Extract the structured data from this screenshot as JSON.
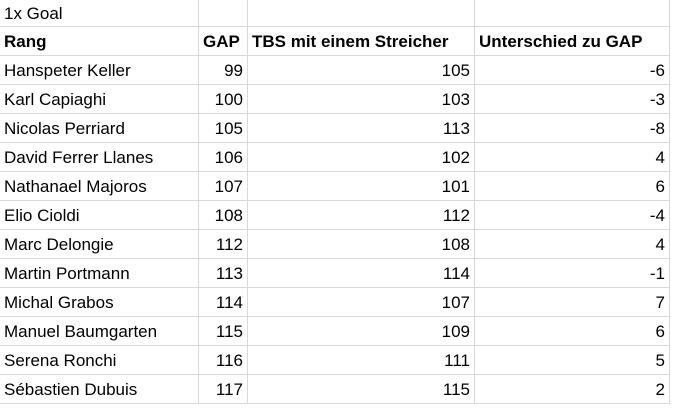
{
  "title": "1x Goal",
  "table": {
    "header": [
      "Rang",
      "GAP",
      "TBS mit einem Streicher",
      "Unterschied zu GAP"
    ],
    "rows": [
      [
        "Hanspeter Keller",
        99,
        105,
        -6
      ],
      [
        "Karl Capiaghi",
        100,
        103,
        -3
      ],
      [
        "Nicolas Perriard",
        105,
        113,
        -8
      ],
      [
        "David Ferrer Llanes",
        106,
        102,
        4
      ],
      [
        "Nathanael Majoros",
        107,
        101,
        6
      ],
      [
        "Elio Cioldi",
        108,
        112,
        -4
      ],
      [
        "Marc Delongie",
        112,
        108,
        4
      ],
      [
        "Martin Portmann",
        113,
        114,
        -1
      ],
      [
        "Michal Grabos",
        114,
        107,
        7
      ],
      [
        "Manuel Baumgarten",
        115,
        109,
        6
      ],
      [
        "Serena Ronchi",
        116,
        111,
        5
      ],
      [
        "Sébastien Dubuis",
        117,
        115,
        2
      ]
    ]
  }
}
